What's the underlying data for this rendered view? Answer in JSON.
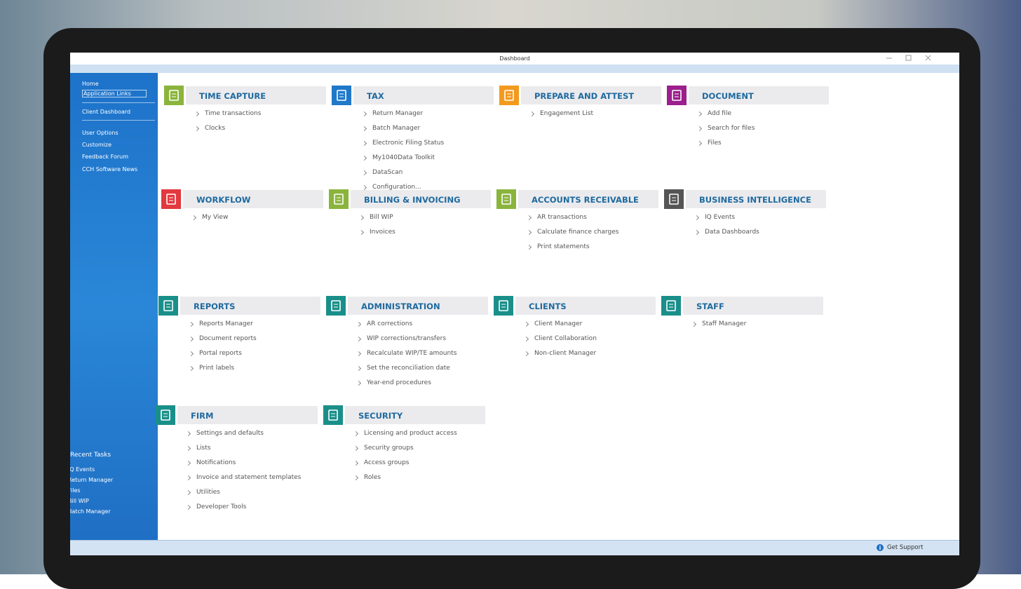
{
  "window": {
    "title": "Dashboard"
  },
  "sidebar": {
    "links": [
      "Home",
      "Application Links",
      "Client Dashboard",
      "User Options",
      "Customize",
      "Feedback Forum",
      "CCH Software News"
    ],
    "recent_title": "Recent Tasks",
    "recent": [
      "iQ Events",
      "Return Manager",
      "Files",
      "Bill WIP",
      "Batch Manager"
    ]
  },
  "tiles": [
    {
      "title": "TIME CAPTURE",
      "color": "#8ab43c",
      "items": [
        "Time transactions",
        "Clocks"
      ]
    },
    {
      "title": "TAX",
      "color": "#1f78c8",
      "items": [
        "Return Manager",
        "Batch Manager",
        "Electronic Filing Status",
        "My1040Data Toolkit",
        "DataScan",
        "Configuration..."
      ]
    },
    {
      "title": "PREPARE AND ATTEST",
      "color": "#f39a1e",
      "items": [
        "Engagement List"
      ]
    },
    {
      "title": "DOCUMENT",
      "color": "#9b1f8c",
      "items": [
        "Add file",
        "Search for files",
        "Files"
      ]
    },
    {
      "title": "WORKFLOW",
      "color": "#e2383f",
      "items": [
        "My View"
      ]
    },
    {
      "title": "BILLING & INVOICING",
      "color": "#8ab43c",
      "items": [
        "Bill WIP",
        "Invoices"
      ]
    },
    {
      "title": "ACCOUNTS RECEIVABLE",
      "color": "#8ab43c",
      "items": [
        "AR transactions",
        "Calculate finance charges",
        "Print statements"
      ]
    },
    {
      "title": "BUSINESS INTELLIGENCE",
      "color": "#555555",
      "items": [
        "IQ Events",
        "Data Dashboards"
      ]
    },
    {
      "title": "REPORTS",
      "color": "#1a8f8a",
      "items": [
        "Reports Manager",
        "Document reports",
        "Portal reports",
        "Print labels"
      ]
    },
    {
      "title": "ADMINISTRATION",
      "color": "#1a8f8a",
      "items": [
        "AR corrections",
        "WIP corrections/transfers",
        "Recalculate WIP/TE amounts",
        "Set the reconciliation date",
        "Year-end procedures"
      ]
    },
    {
      "title": "CLIENTS",
      "color": "#1a8f8a",
      "items": [
        "Client Manager",
        "Client Collaboration",
        "Non-client Manager"
      ]
    },
    {
      "title": "STAFF",
      "color": "#1a8f8a",
      "items": [
        "Staff Manager"
      ]
    },
    {
      "title": "FIRM",
      "color": "#1a8f8a",
      "items": [
        "Settings and defaults",
        "Lists",
        "Notifications",
        "Invoice and statement templates",
        "Utilities",
        "Developer Tools"
      ]
    },
    {
      "title": "SECURITY",
      "color": "#1a8f8a",
      "items": [
        "Licensing and product access",
        "Security groups",
        "Access groups",
        "Roles"
      ]
    }
  ],
  "footer": {
    "support": "Get Support"
  }
}
